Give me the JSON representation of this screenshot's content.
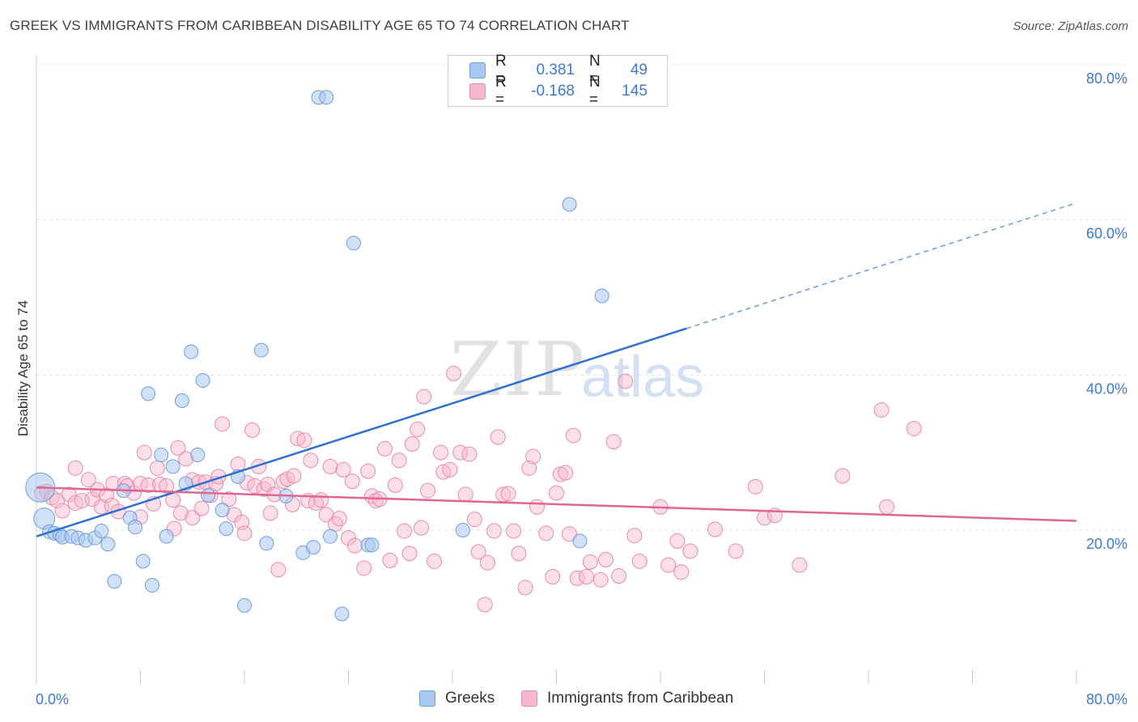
{
  "title": "GREEK VS IMMIGRANTS FROM CARIBBEAN DISABILITY AGE 65 TO 74 CORRELATION CHART",
  "source": "Source: ZipAtlas.com",
  "watermark": {
    "zip": "ZIP",
    "atlas": "atlas"
  },
  "stats": {
    "r_label": "R =",
    "n_label": "N =",
    "greeks": {
      "r": "0.381",
      "n": "49"
    },
    "caribbean": {
      "r": "-0.168",
      "n": "145"
    }
  },
  "colors": {
    "greeks_fill": "#a9c6ef",
    "greeks_stroke": "#6f9fdc",
    "greeks_line": "#2f6fd1",
    "caribbean_fill": "#f6b8cb",
    "caribbean_stroke": "#e98aaa",
    "caribbean_line": "#e0668f",
    "axis_label": "#3c78d8",
    "grid": "#e3e3e3"
  },
  "chart_data": {
    "type": "scatter",
    "title": "GREEK VS IMMIGRANTS FROM CARIBBEAN DISABILITY AGE 65 TO 74 CORRELATION CHART",
    "xlabel": "",
    "ylabel": "Disability Age 65 to 74",
    "xlim": [
      0,
      80
    ],
    "ylim": [
      0,
      80
    ],
    "x_tick_labels": [
      "0.0%",
      "80.0%"
    ],
    "y_tick_labels": [
      "20.0%",
      "40.0%",
      "60.0%",
      "80.0%"
    ],
    "y_ticks": [
      20,
      40,
      60,
      80
    ],
    "grid": true,
    "legend_position": "bottom",
    "series": [
      {
        "name": "Greeks",
        "points": [
          [
            0.3,
            25.5
          ],
          [
            0.6,
            21.5
          ],
          [
            1.0,
            19.8
          ],
          [
            1.4,
            19.6
          ],
          [
            1.8,
            19.4
          ],
          [
            2.0,
            19.1
          ],
          [
            2.7,
            19.2
          ],
          [
            3.2,
            19.0
          ],
          [
            3.8,
            18.7
          ],
          [
            4.5,
            19.0
          ],
          [
            5.0,
            19.9
          ],
          [
            5.5,
            18.2
          ],
          [
            6.0,
            13.4
          ],
          [
            6.7,
            25.1
          ],
          [
            7.2,
            21.6
          ],
          [
            7.6,
            20.4
          ],
          [
            8.2,
            16.0
          ],
          [
            8.6,
            37.6
          ],
          [
            8.9,
            12.9
          ],
          [
            9.6,
            29.7
          ],
          [
            10.0,
            19.2
          ],
          [
            10.5,
            28.2
          ],
          [
            11.2,
            36.7
          ],
          [
            11.5,
            26.0
          ],
          [
            11.9,
            43.0
          ],
          [
            12.4,
            29.7
          ],
          [
            12.8,
            39.3
          ],
          [
            13.2,
            24.5
          ],
          [
            14.3,
            22.6
          ],
          [
            14.6,
            20.2
          ],
          [
            15.5,
            26.9
          ],
          [
            16.0,
            10.3
          ],
          [
            17.3,
            43.2
          ],
          [
            17.7,
            18.3
          ],
          [
            19.2,
            24.4
          ],
          [
            20.5,
            17.1
          ],
          [
            21.3,
            17.8
          ],
          [
            21.7,
            75.8
          ],
          [
            22.3,
            75.8
          ],
          [
            22.6,
            19.2
          ],
          [
            23.5,
            9.2
          ],
          [
            24.4,
            57.0
          ],
          [
            25.5,
            18.1
          ],
          [
            25.8,
            18.1
          ],
          [
            32.8,
            20.0
          ],
          [
            41.0,
            62.0
          ],
          [
            41.8,
            18.6
          ],
          [
            43.5,
            50.2
          ]
        ],
        "sizes": {
          "0": 18,
          "1": 13
        },
        "trend": {
          "x0": 0,
          "y0": 19.2,
          "x1": 50,
          "y1": 46.0,
          "dashed_to_x": 80,
          "dashed_to_y": 62.2
        }
      },
      {
        "name": "Immigrants from Caribbean",
        "points": [
          [
            0.4,
            24.8
          ],
          [
            0.8,
            25.0
          ],
          [
            1.2,
            24.2
          ],
          [
            1.6,
            23.8
          ],
          [
            2.0,
            22.5
          ],
          [
            2.5,
            24.6
          ],
          [
            3.0,
            23.5
          ],
          [
            3.0,
            28.0
          ],
          [
            3.5,
            23.8
          ],
          [
            4.0,
            26.5
          ],
          [
            4.3,
            24.0
          ],
          [
            4.7,
            25.2
          ],
          [
            5.0,
            23.0
          ],
          [
            5.4,
            24.5
          ],
          [
            5.8,
            23.2
          ],
          [
            5.9,
            26.0
          ],
          [
            6.3,
            22.4
          ],
          [
            6.8,
            26.0
          ],
          [
            7.0,
            25.7
          ],
          [
            7.5,
            24.8
          ],
          [
            8.0,
            26.0
          ],
          [
            8.0,
            21.7
          ],
          [
            8.3,
            30.0
          ],
          [
            8.6,
            25.8
          ],
          [
            9.0,
            23.4
          ],
          [
            9.3,
            28.0
          ],
          [
            9.5,
            25.9
          ],
          [
            10.0,
            25.7
          ],
          [
            10.5,
            23.9
          ],
          [
            10.6,
            20.2
          ],
          [
            10.9,
            30.6
          ],
          [
            11.1,
            22.2
          ],
          [
            11.5,
            29.2
          ],
          [
            12.0,
            21.6
          ],
          [
            12.0,
            26.5
          ],
          [
            12.5,
            26.2
          ],
          [
            12.7,
            22.8
          ],
          [
            13.0,
            26.2
          ],
          [
            13.4,
            24.5
          ],
          [
            13.8,
            26.0
          ],
          [
            14.0,
            26.9
          ],
          [
            14.3,
            33.7
          ],
          [
            14.8,
            24.0
          ],
          [
            15.2,
            22.0
          ],
          [
            15.5,
            28.5
          ],
          [
            15.8,
            21.0
          ],
          [
            16.0,
            19.6
          ],
          [
            16.2,
            26.1
          ],
          [
            16.6,
            32.9
          ],
          [
            16.8,
            25.7
          ],
          [
            17.1,
            28.2
          ],
          [
            17.5,
            25.3
          ],
          [
            17.8,
            25.9
          ],
          [
            18.0,
            22.2
          ],
          [
            18.3,
            24.6
          ],
          [
            18.6,
            14.9
          ],
          [
            19.0,
            26.3
          ],
          [
            19.3,
            26.6
          ],
          [
            19.7,
            23.3
          ],
          [
            19.8,
            27.0
          ],
          [
            20.1,
            31.8
          ],
          [
            20.6,
            31.6
          ],
          [
            20.9,
            23.8
          ],
          [
            21.1,
            29.0
          ],
          [
            21.5,
            23.5
          ],
          [
            21.9,
            23.9
          ],
          [
            22.3,
            22.0
          ],
          [
            22.6,
            28.2
          ],
          [
            23.0,
            20.8
          ],
          [
            23.3,
            21.5
          ],
          [
            23.6,
            27.8
          ],
          [
            24.0,
            19.0
          ],
          [
            24.3,
            26.3
          ],
          [
            24.5,
            18.0
          ],
          [
            25.2,
            15.1
          ],
          [
            25.5,
            27.6
          ],
          [
            25.8,
            24.4
          ],
          [
            26.1,
            23.8
          ],
          [
            26.4,
            24.0
          ],
          [
            26.8,
            30.5
          ],
          [
            27.2,
            16.1
          ],
          [
            27.6,
            25.8
          ],
          [
            27.9,
            29.0
          ],
          [
            28.3,
            19.9
          ],
          [
            28.7,
            17.0
          ],
          [
            28.9,
            31.1
          ],
          [
            29.3,
            33.0
          ],
          [
            29.6,
            20.3
          ],
          [
            29.8,
            37.2
          ],
          [
            30.1,
            25.1
          ],
          [
            30.6,
            16.0
          ],
          [
            31.1,
            30.0
          ],
          [
            31.3,
            27.5
          ],
          [
            31.8,
            27.8
          ],
          [
            32.1,
            40.2
          ],
          [
            32.6,
            30.0
          ],
          [
            33.0,
            24.6
          ],
          [
            33.3,
            29.8
          ],
          [
            33.7,
            21.4
          ],
          [
            34.0,
            17.2
          ],
          [
            34.5,
            10.4
          ],
          [
            34.7,
            15.8
          ],
          [
            35.2,
            19.9
          ],
          [
            35.5,
            32.0
          ],
          [
            35.9,
            24.6
          ],
          [
            36.3,
            24.7
          ],
          [
            36.7,
            19.9
          ],
          [
            37.1,
            17.0
          ],
          [
            37.6,
            12.6
          ],
          [
            37.9,
            28.0
          ],
          [
            38.2,
            29.5
          ],
          [
            38.5,
            23.0
          ],
          [
            39.2,
            19.6
          ],
          [
            39.7,
            14.0
          ],
          [
            40.0,
            24.8
          ],
          [
            40.3,
            27.2
          ],
          [
            40.7,
            27.4
          ],
          [
            41.0,
            19.5
          ],
          [
            41.3,
            32.2
          ],
          [
            41.6,
            13.8
          ],
          [
            42.3,
            14.0
          ],
          [
            42.6,
            15.9
          ],
          [
            43.4,
            13.6
          ],
          [
            43.8,
            16.2
          ],
          [
            44.4,
            31.4
          ],
          [
            44.8,
            14.1
          ],
          [
            45.3,
            39.2
          ],
          [
            46.0,
            19.3
          ],
          [
            46.4,
            16.0
          ],
          [
            48.0,
            23.0
          ],
          [
            48.6,
            15.5
          ],
          [
            49.3,
            18.6
          ],
          [
            49.6,
            14.6
          ],
          [
            50.3,
            17.3
          ],
          [
            52.2,
            20.1
          ],
          [
            53.8,
            17.3
          ],
          [
            55.3,
            25.6
          ],
          [
            56.0,
            21.6
          ],
          [
            56.8,
            21.9
          ],
          [
            58.7,
            15.5
          ],
          [
            62.0,
            27.0
          ],
          [
            65.0,
            35.5
          ],
          [
            65.4,
            23.0
          ],
          [
            67.5,
            33.1
          ]
        ],
        "trend": {
          "x0": 0,
          "y0": 25.5,
          "x1": 80,
          "y1": 21.2
        }
      }
    ]
  }
}
